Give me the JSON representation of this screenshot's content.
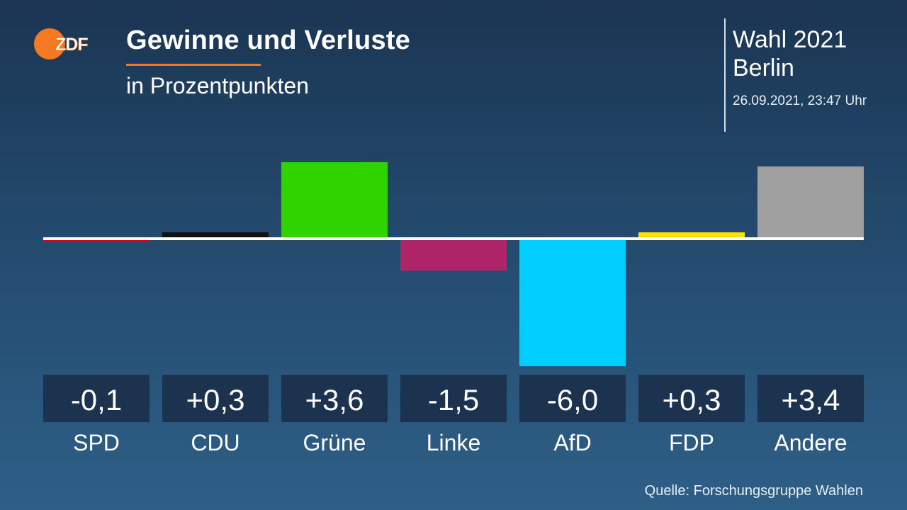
{
  "header": {
    "logo_text": "ZDF",
    "title": "Gewinne und Verluste",
    "subtitle": "in Prozentpunkten",
    "election": "Wahl 2021",
    "region": "Berlin",
    "timestamp": "26.09.2021, 23:47 Uhr"
  },
  "footer": {
    "source": "Quelle: Forschungsgruppe Wahlen"
  },
  "colors": {
    "accent": "#f47920",
    "label_box": "#1c3350",
    "baseline": "#ffffff"
  },
  "chart_data": {
    "type": "bar",
    "title": "Gewinne und Verluste",
    "subtitle": "in Prozentpunkten",
    "categories": [
      "SPD",
      "CDU",
      "Grüne",
      "Linke",
      "AfD",
      "FDP",
      "Andere"
    ],
    "values": [
      -0.1,
      0.3,
      3.6,
      -1.5,
      -6.0,
      0.3,
      3.4
    ],
    "value_labels": [
      "-0,1",
      "+0,3",
      "+3,6",
      "-1,5",
      "-6,0",
      "+0,3",
      "+3,4"
    ],
    "colors": [
      "#e3000f",
      "#111111",
      "#2ed300",
      "#b0246a",
      "#00cfff",
      "#ffe000",
      "#a0a0a0"
    ],
    "grid": false,
    "legend": "none"
  }
}
